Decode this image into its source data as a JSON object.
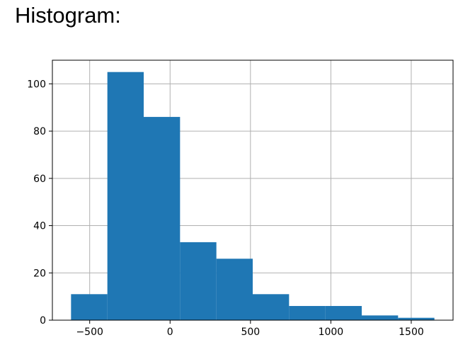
{
  "heading": "Histogram:",
  "chart_data": {
    "type": "bar",
    "bins": [
      {
        "x0": -616,
        "x1": -390,
        "count": 11
      },
      {
        "x0": -390,
        "x1": -164,
        "count": 105
      },
      {
        "x0": -164,
        "x1": 62,
        "count": 86
      },
      {
        "x0": 62,
        "x1": 288,
        "count": 33
      },
      {
        "x0": 288,
        "x1": 514,
        "count": 26
      },
      {
        "x0": 514,
        "x1": 740,
        "count": 11
      },
      {
        "x0": 740,
        "x1": 966,
        "count": 6
      },
      {
        "x0": 966,
        "x1": 1192,
        "count": 6
      },
      {
        "x0": 1192,
        "x1": 1418,
        "count": 2
      },
      {
        "x0": 1418,
        "x1": 1644,
        "count": 1
      }
    ],
    "xlim": [
      -732,
      1760
    ],
    "ylim": [
      0,
      110
    ],
    "xticks": [
      -500,
      0,
      500,
      1000,
      1500
    ],
    "xtick_labels": [
      "−500",
      "0",
      "500",
      "1000",
      "1500"
    ],
    "yticks": [
      0,
      20,
      40,
      60,
      80,
      100
    ],
    "ytick_labels": [
      "0",
      "20",
      "40",
      "60",
      "80",
      "100"
    ],
    "grid": true,
    "bar_color": "#1f77b4",
    "grid_color": "#b0b0b0",
    "title": "",
    "xlabel": "",
    "ylabel": ""
  }
}
